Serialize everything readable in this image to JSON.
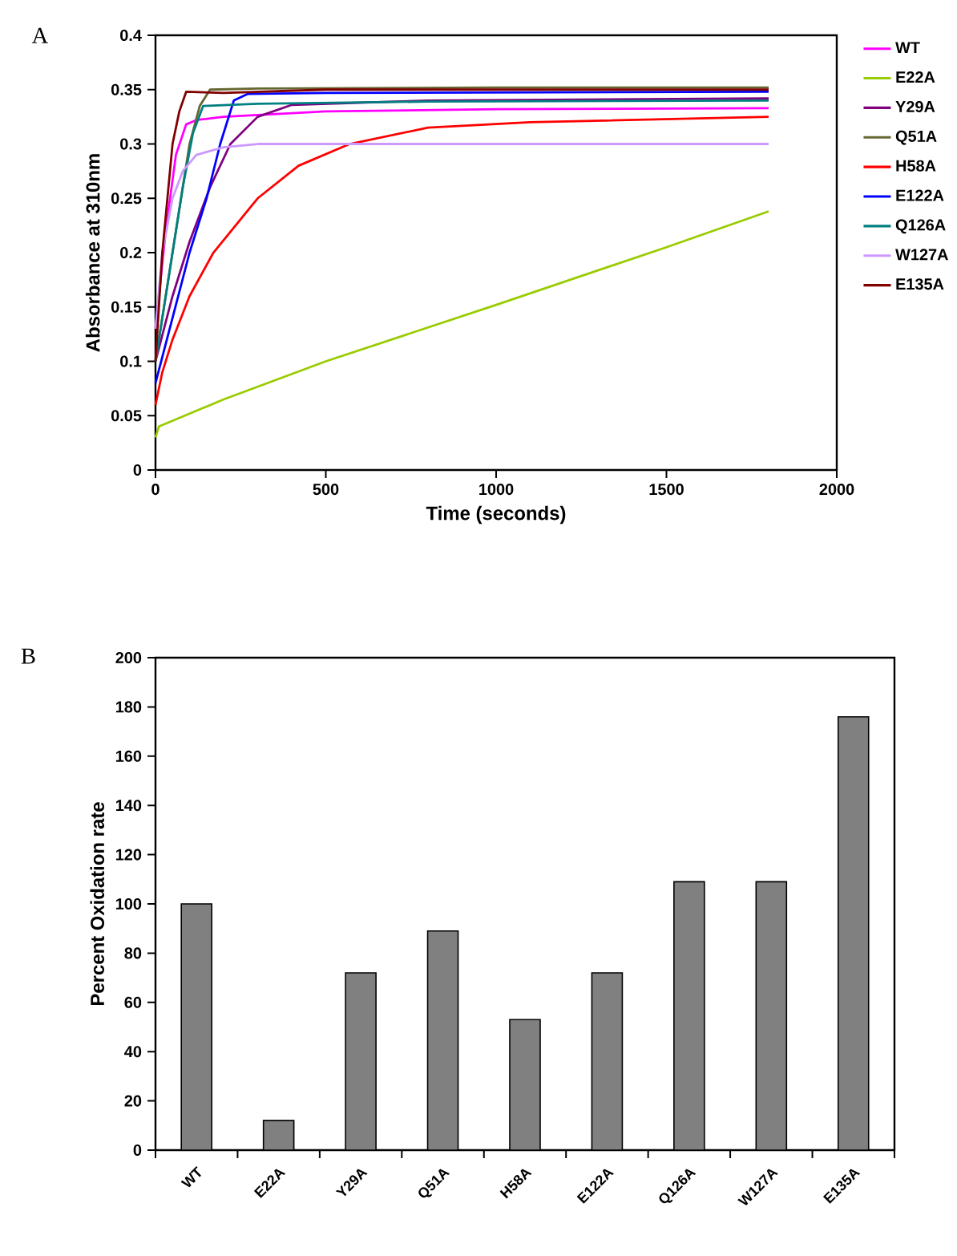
{
  "chart_data": [
    {
      "type": "line",
      "title": "A",
      "xlabel": "Time (seconds)",
      "ylabel": "Absorbance at 310nm",
      "xlim": [
        0,
        2000
      ],
      "xticks": [
        0,
        500,
        1000,
        1500,
        2000
      ],
      "ylim": [
        0,
        0.4
      ],
      "yticks": [
        0,
        0.05,
        0.1,
        0.15,
        0.2,
        0.25,
        0.3,
        0.35,
        0.4
      ],
      "legend": "right",
      "marker": "none",
      "line_style": "solid",
      "grid": false,
      "series": [
        {
          "name": "WT",
          "color": "#ff00ff",
          "x": [
            0,
            30,
            60,
            90,
            120,
            200,
            500,
            1000,
            1800
          ],
          "values": [
            0.13,
            0.22,
            0.29,
            0.318,
            0.322,
            0.325,
            0.33,
            0.332,
            0.333
          ]
        },
        {
          "name": "E22A",
          "color": "#99cc00",
          "x": [
            0,
            10,
            200,
            500,
            1000,
            1500,
            1800
          ],
          "values": [
            0.03,
            0.04,
            0.065,
            0.1,
            0.152,
            0.205,
            0.238
          ]
        },
        {
          "name": "Y29A",
          "color": "#800080",
          "x": [
            0,
            50,
            100,
            160,
            220,
            300,
            400,
            800,
            1800
          ],
          "values": [
            0.1,
            0.16,
            0.21,
            0.26,
            0.3,
            0.325,
            0.336,
            0.34,
            0.342
          ]
        },
        {
          "name": "Q51A",
          "color": "#666633",
          "x": [
            0,
            50,
            100,
            130,
            160,
            300,
            1000,
            1800
          ],
          "values": [
            0.1,
            0.2,
            0.3,
            0.335,
            0.35,
            0.351,
            0.352,
            0.352
          ]
        },
        {
          "name": "H58A",
          "color": "#ff0000",
          "x": [
            0,
            20,
            50,
            100,
            170,
            300,
            420,
            570,
            800,
            1100,
            1800
          ],
          "values": [
            0.06,
            0.09,
            0.12,
            0.16,
            0.2,
            0.25,
            0.28,
            0.3,
            0.315,
            0.32,
            0.325
          ]
        },
        {
          "name": "E122A",
          "color": "#0000ff",
          "x": [
            0,
            50,
            100,
            150,
            190,
            230,
            270,
            500,
            1800
          ],
          "values": [
            0.08,
            0.14,
            0.2,
            0.25,
            0.3,
            0.34,
            0.346,
            0.347,
            0.348
          ]
        },
        {
          "name": "Q126A",
          "color": "#008080",
          "x": [
            0,
            40,
            80,
            110,
            140,
            300,
            800,
            1800
          ],
          "values": [
            0.1,
            0.18,
            0.26,
            0.31,
            0.335,
            0.337,
            0.339,
            0.34
          ]
        },
        {
          "name": "W127A",
          "color": "#cc99ff",
          "x": [
            0,
            20,
            50,
            80,
            120,
            200,
            300,
            1000,
            1800
          ],
          "values": [
            0.13,
            0.2,
            0.25,
            0.275,
            0.29,
            0.297,
            0.3,
            0.3,
            0.3
          ]
        },
        {
          "name": "E135A",
          "color": "#800000",
          "x": [
            0,
            20,
            50,
            70,
            90,
            200,
            500,
            1000,
            1800
          ],
          "values": [
            0.1,
            0.2,
            0.3,
            0.33,
            0.348,
            0.347,
            0.35,
            0.35,
            0.35
          ]
        }
      ]
    },
    {
      "type": "bar",
      "title": "B",
      "ylabel": "Percent Oxidation rate",
      "categories": [
        "WT",
        "E22A",
        "Y29A",
        "Q51A",
        "H58A",
        "E122A",
        "Q126A",
        "W127A",
        "E135A"
      ],
      "values": [
        100,
        12,
        72,
        89,
        53,
        72,
        109,
        109,
        176
      ],
      "color": "#808080",
      "ylim": [
        0,
        200
      ],
      "yticks": [
        0,
        20,
        40,
        60,
        80,
        100,
        120,
        140,
        160,
        180,
        200
      ],
      "grid": false,
      "legend": false
    }
  ]
}
